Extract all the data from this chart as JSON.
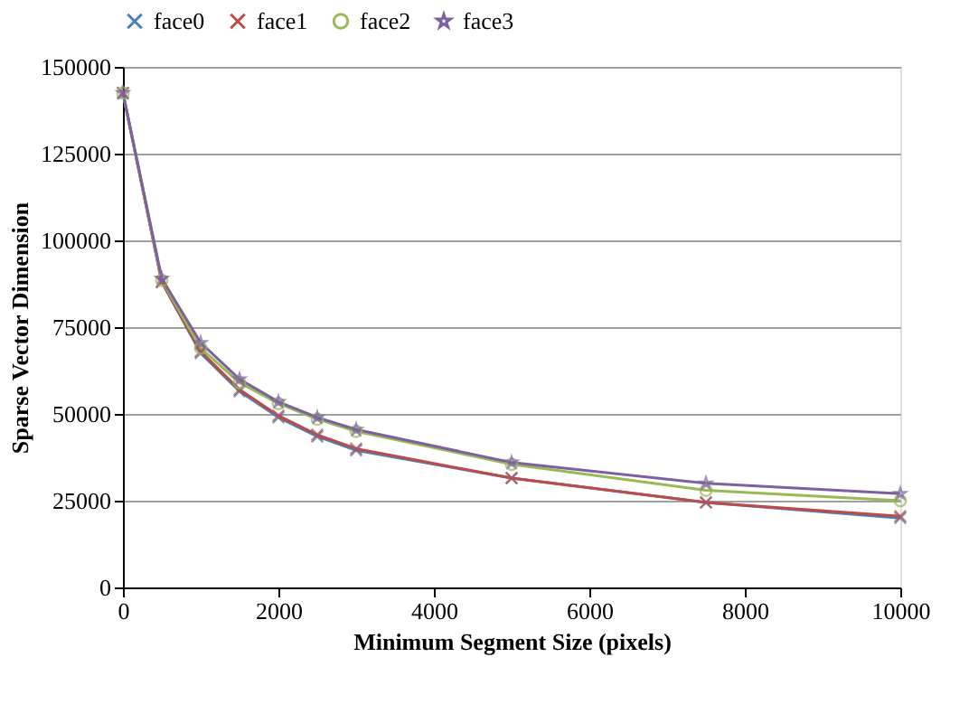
{
  "chart_data": {
    "type": "line",
    "xlabel": "Minimum Segment Size (pixels)",
    "ylabel": "Sparse Vector Dimension",
    "x": [
      0,
      500,
      1000,
      1500,
      2000,
      2500,
      3000,
      5000,
      7500,
      10000
    ],
    "series": [
      {
        "name": "face0",
        "color": "#4a7ebb",
        "marker": "cross",
        "values": [
          142500,
          88000,
          67500,
          56500,
          49000,
          43500,
          39500,
          31500,
          24500,
          20000
        ]
      },
      {
        "name": "face1",
        "color": "#be4b48",
        "marker": "cross",
        "values": [
          142500,
          88000,
          68000,
          57000,
          49500,
          44000,
          40000,
          31500,
          24500,
          20500
        ]
      },
      {
        "name": "face2",
        "color": "#98b954",
        "marker": "circle",
        "values": [
          142500,
          88500,
          69000,
          59000,
          53000,
          48500,
          45000,
          35500,
          28000,
          25000
        ]
      },
      {
        "name": "face3",
        "color": "#7d60a0",
        "marker": "star",
        "values": [
          142500,
          89000,
          70500,
          60000,
          53500,
          49000,
          45500,
          36000,
          30000,
          27000
        ]
      }
    ],
    "xlim": [
      0,
      10000
    ],
    "xticks": [
      0,
      2000,
      4000,
      6000,
      8000,
      10000
    ],
    "ylim": [
      0,
      150000
    ],
    "yticks": [
      0,
      25000,
      50000,
      75000,
      100000,
      125000,
      150000
    ],
    "grid": "y",
    "legend": "top",
    "line_style": "solid"
  }
}
